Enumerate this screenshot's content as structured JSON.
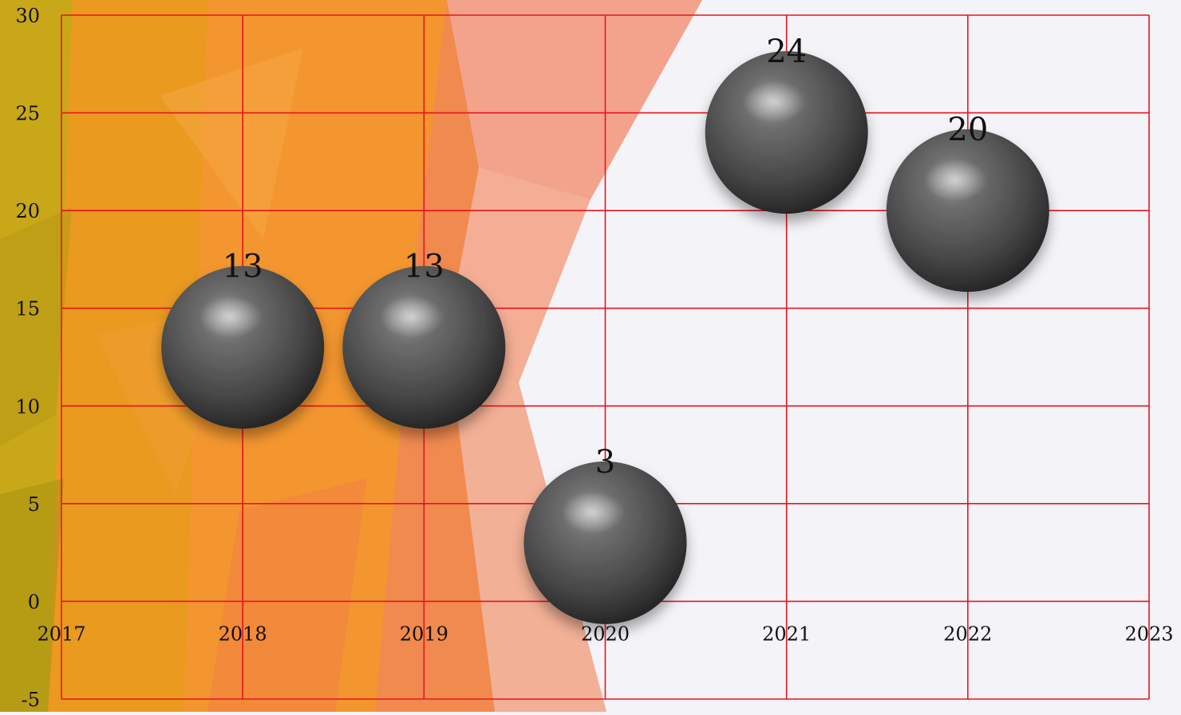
{
  "chart_data": {
    "type": "scatter",
    "title": "",
    "xlabel": "",
    "ylabel": "",
    "xlim": [
      2017,
      2023
    ],
    "ylim": [
      -5,
      30
    ],
    "x_ticks": [
      "2017",
      "2018",
      "2019",
      "2020",
      "2021",
      "2022",
      "2023"
    ],
    "y_ticks": [
      "30",
      "25",
      "20",
      "15",
      "10",
      "5",
      "0",
      "-5"
    ],
    "grid": true,
    "legend": "none",
    "grid_color": "#e8141e",
    "marker_color": "#4a4a4a",
    "series": [
      {
        "x": [
          2018,
          2019,
          2020,
          2021,
          2022
        ],
        "y": [
          13,
          13,
          3,
          24,
          20
        ],
        "labels": [
          "13",
          "13",
          "3",
          "24",
          "20"
        ]
      }
    ]
  }
}
